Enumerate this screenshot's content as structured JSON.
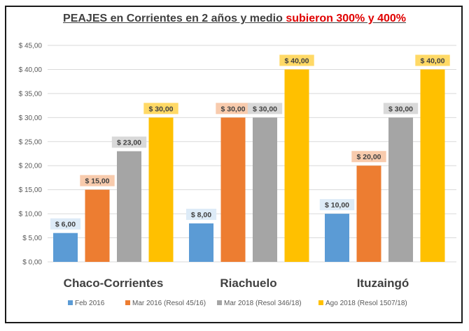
{
  "title": {
    "main": "PEAJES en Corrientes en 2 años y medio ",
    "highlight": "subieron 300% y 400%"
  },
  "colors": {
    "title_highlight": "#e00000",
    "grid": "#d9d9d9",
    "axis_text": "#595959"
  },
  "chart_data": {
    "type": "bar",
    "title": "PEAJES en Corrientes en 2 años y medio subieron 300% y 400%",
    "categories": [
      "Chaco-Corrientes",
      "Riachuelo",
      "Ituzaingó"
    ],
    "ylim": [
      0,
      45
    ],
    "ytick_step": 5,
    "ytick_labels": [
      "$ 0,00",
      "$ 5,00",
      "$ 10,00",
      "$ 15,00",
      "$ 20,00",
      "$ 25,00",
      "$ 30,00",
      "$ 35,00",
      "$ 40,00",
      "$ 45,00"
    ],
    "grid": true,
    "legend_position": "bottom",
    "series": [
      {
        "name": "Feb 2016",
        "color": "#5b9bd5",
        "label_bg": "#ddebf7",
        "values": [
          6,
          8,
          10
        ],
        "labels": [
          "$ 6,00",
          "$ 8,00",
          "$ 10,00"
        ]
      },
      {
        "name": "Mar 2016 (Resol 45/16)",
        "color": "#ed7d31",
        "label_bg": "#f8cbad",
        "values": [
          15,
          30,
          20
        ],
        "labels": [
          "$ 15,00",
          "$ 30,00",
          "$ 20,00"
        ]
      },
      {
        "name": "Mar 2018 (Resol 346/18)",
        "color": "#a5a5a5",
        "label_bg": "#d9d9d9",
        "values": [
          23,
          30,
          30
        ],
        "labels": [
          "$ 23,00",
          "$ 30,00",
          "$ 30,00"
        ]
      },
      {
        "name": "Ago 2018 (Resol 1507/18)",
        "color": "#ffc000",
        "label_bg": "#ffd966",
        "values": [
          30,
          40,
          40
        ],
        "labels": [
          "$ 30,00",
          "$ 40,00",
          "$ 40,00"
        ]
      }
    ]
  }
}
